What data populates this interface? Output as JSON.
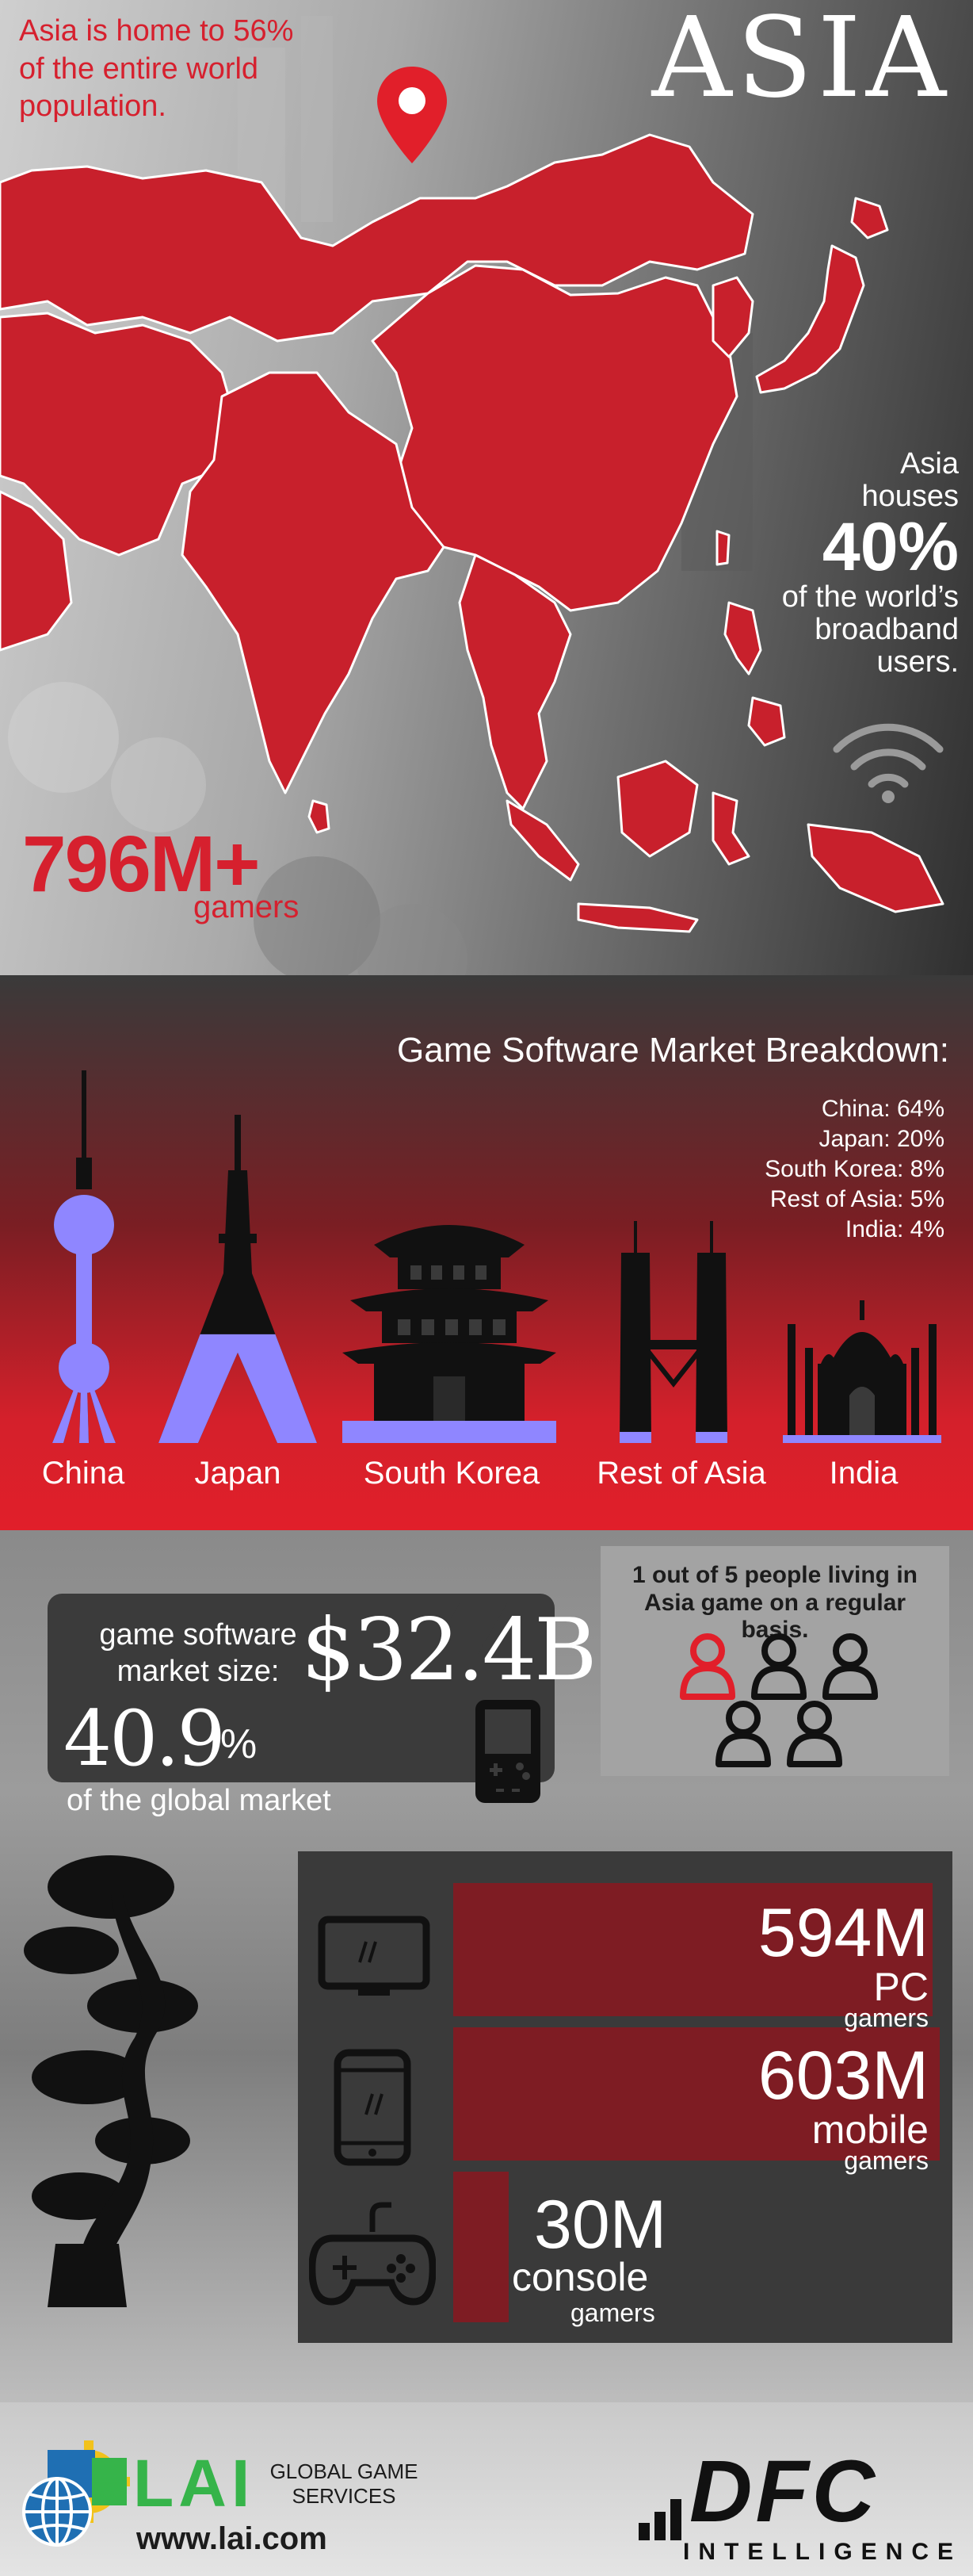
{
  "asia_section": {
    "title": "ASIA",
    "population_text": "Asia is home to 56% of the entire world population.",
    "broadband": {
      "line1": "Asia",
      "line2": "houses",
      "percent": "40%",
      "line3": "of the world’s",
      "line4": "broadband",
      "line5": "users."
    },
    "gamers": {
      "value": "796M+",
      "label": "gamers"
    },
    "map_color": "#c8202c",
    "icons": [
      "location-pin-icon",
      "wifi-icon"
    ]
  },
  "market_breakdown": {
    "title": "Game Software Market Breakdown:",
    "items": [
      {
        "label": "China: 64%"
      },
      {
        "label": "Japan: 20%"
      },
      {
        "label": "South Korea: 8%"
      },
      {
        "label": "Rest of Asia: 5%"
      },
      {
        "label": "India: 4%"
      }
    ],
    "landmarks": [
      {
        "country": "China",
        "share": 0.64
      },
      {
        "country": "Japan",
        "share": 0.2
      },
      {
        "country": "South Korea",
        "share": 0.08
      },
      {
        "country": "Rest of Asia",
        "share": 0.05
      },
      {
        "country": "India",
        "share": 0.04
      }
    ],
    "fill_color": "#8f86ff"
  },
  "market_size": {
    "label": "game software market size:",
    "value": "$32.4B",
    "share_value": "40.9",
    "share_symbol": "%",
    "share_label": "of the global market",
    "icon": "handheld-console-icon"
  },
  "people": {
    "text": "1 out of 5 people living in Asia game on a regular basis.",
    "total": 5,
    "highlighted": 1,
    "highlight_color": "#e11f2a"
  },
  "platforms": [
    {
      "icon": "monitor-icon",
      "value": "594M",
      "kind": "PC",
      "unit": "gamers",
      "millions": 594
    },
    {
      "icon": "smartphone-icon",
      "value": "603M",
      "kind": "mobile",
      "unit": "gamers",
      "millions": 603
    },
    {
      "icon": "gamepad-icon",
      "value": "30M",
      "kind": "console",
      "unit": "gamers",
      "millions": 30
    }
  ],
  "footer": {
    "lai_letters": "LAI",
    "lai_tagline": "GLOBAL GAME SERVICES",
    "lai_url": "www.lai.com",
    "dfc_letters": "DFC",
    "dfc_sub": "INTELLIGENCE"
  }
}
